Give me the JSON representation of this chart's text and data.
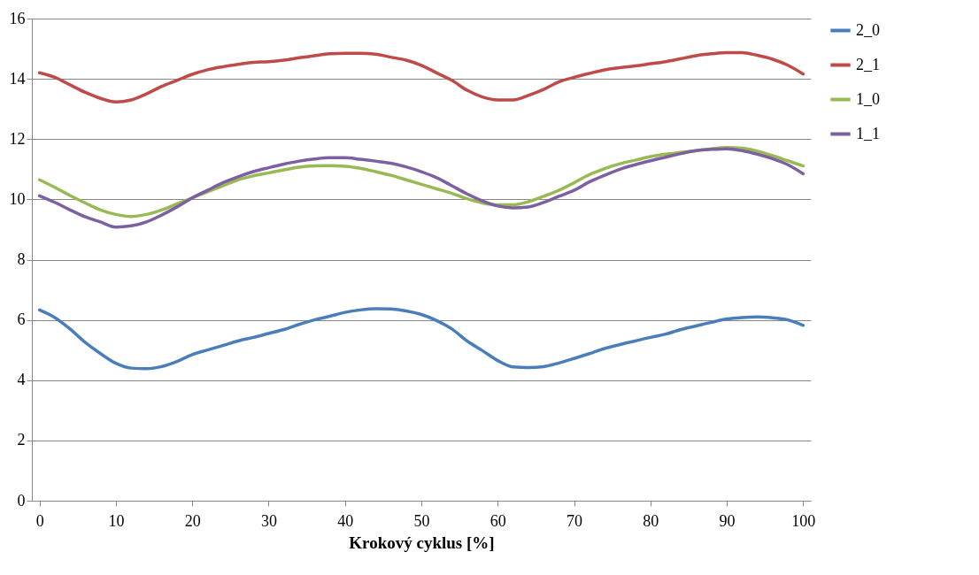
{
  "chart_data": {
    "type": "line",
    "xlabel": "Krokový cyklus [%]",
    "x": [
      0,
      2,
      4,
      6,
      8,
      10,
      12,
      14,
      16,
      18,
      20,
      22,
      24,
      26,
      28,
      30,
      32,
      34,
      36,
      38,
      40,
      42,
      44,
      46,
      48,
      50,
      52,
      54,
      56,
      58,
      60,
      62,
      64,
      66,
      68,
      70,
      72,
      74,
      76,
      78,
      80,
      82,
      84,
      86,
      88,
      90,
      92,
      94,
      96,
      98,
      100
    ],
    "series": [
      {
        "name": "2_0",
        "color": "#4a7ebb",
        "values": [
          6.33,
          6.08,
          5.7,
          5.25,
          4.88,
          4.56,
          4.4,
          4.38,
          4.45,
          4.62,
          4.85,
          5.0,
          5.15,
          5.3,
          5.42,
          5.55,
          5.68,
          5.85,
          6.0,
          6.12,
          6.25,
          6.33,
          6.37,
          6.36,
          6.3,
          6.18,
          5.98,
          5.7,
          5.3,
          4.98,
          4.65,
          4.44,
          4.42,
          4.45,
          4.57,
          4.72,
          4.88,
          5.05,
          5.18,
          5.3,
          5.42,
          5.53,
          5.68,
          5.8,
          5.92,
          6.03,
          6.08,
          6.1,
          6.07,
          6.0,
          5.82
        ]
      },
      {
        "name": "2_1",
        "color": "#be4b48",
        "values": [
          14.2,
          14.05,
          13.8,
          13.55,
          13.35,
          13.23,
          13.3,
          13.5,
          13.75,
          13.95,
          14.15,
          14.3,
          14.4,
          14.48,
          14.55,
          14.57,
          14.62,
          14.7,
          14.77,
          14.83,
          14.85,
          14.85,
          14.82,
          14.72,
          14.62,
          14.45,
          14.2,
          13.95,
          13.62,
          13.4,
          13.3,
          13.3,
          13.45,
          13.65,
          13.9,
          14.05,
          14.18,
          14.3,
          14.37,
          14.43,
          14.5,
          14.57,
          14.67,
          14.77,
          14.83,
          14.87,
          14.87,
          14.78,
          14.65,
          14.45,
          14.16
        ]
      },
      {
        "name": "1_0",
        "color": "#98b954",
        "values": [
          10.65,
          10.4,
          10.13,
          9.88,
          9.65,
          9.5,
          9.43,
          9.5,
          9.65,
          9.85,
          10.05,
          10.25,
          10.45,
          10.65,
          10.78,
          10.88,
          10.98,
          11.07,
          11.11,
          11.12,
          11.1,
          11.03,
          10.92,
          10.8,
          10.65,
          10.5,
          10.35,
          10.2,
          10.02,
          9.88,
          9.82,
          9.82,
          9.92,
          10.1,
          10.3,
          10.55,
          10.82,
          11.02,
          11.18,
          11.3,
          11.42,
          11.5,
          11.56,
          11.62,
          11.68,
          11.72,
          11.7,
          11.6,
          11.45,
          11.28,
          11.11
        ]
      },
      {
        "name": "1_1",
        "color": "#7d60a0",
        "values": [
          10.12,
          9.9,
          9.65,
          9.42,
          9.25,
          9.08,
          9.12,
          9.25,
          9.48,
          9.75,
          10.05,
          10.3,
          10.55,
          10.75,
          10.92,
          11.05,
          11.17,
          11.27,
          11.34,
          11.38,
          11.38,
          11.33,
          11.27,
          11.2,
          11.08,
          10.92,
          10.72,
          10.45,
          10.18,
          9.95,
          9.78,
          9.72,
          9.75,
          9.9,
          10.1,
          10.3,
          10.58,
          10.8,
          11.0,
          11.15,
          11.28,
          11.4,
          11.52,
          11.62,
          11.66,
          11.68,
          11.62,
          11.5,
          11.35,
          11.15,
          10.85
        ]
      }
    ],
    "xlim": [
      -1,
      101
    ],
    "xticks": [
      0,
      10,
      20,
      30,
      40,
      50,
      60,
      70,
      80,
      90,
      100
    ],
    "ylim": [
      0,
      16
    ],
    "yticks": [
      0,
      2,
      4,
      6,
      8,
      10,
      12,
      14,
      16
    ],
    "grid": "y",
    "legend": "right",
    "marker": "none",
    "line_style": "solid"
  }
}
